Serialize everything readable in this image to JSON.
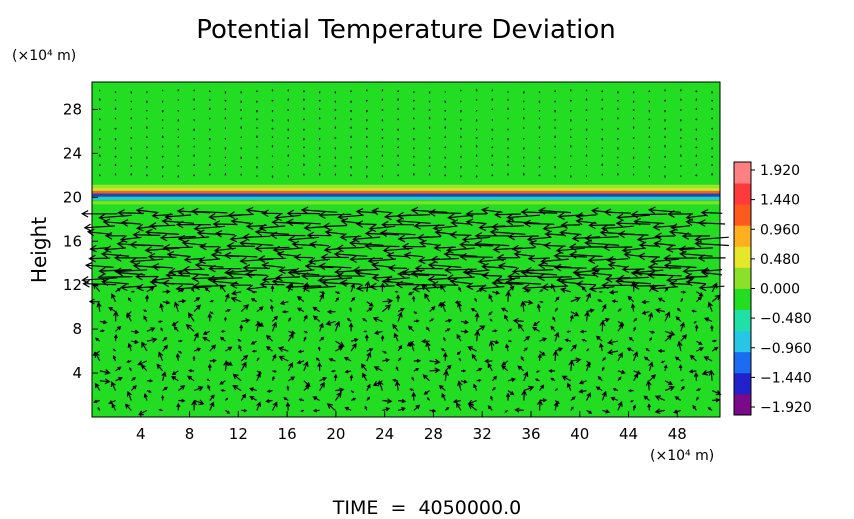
{
  "chart_data": {
    "type": "heatmap",
    "title": "Potential Temperature Deviation",
    "ylabel": "Height",
    "y_unit_label": "(×10⁴ m)",
    "x_unit_label": "(×10⁴ m)",
    "footer": "TIME  =  4050000.0",
    "x_ticks": [
      "4",
      "8",
      "12",
      "16",
      "20",
      "24",
      "28",
      "32",
      "36",
      "40",
      "44",
      "48"
    ],
    "y_ticks": [
      "4",
      "8",
      "12",
      "16",
      "20",
      "24",
      "28"
    ],
    "x_tick_values": [
      4,
      8,
      12,
      16,
      20,
      24,
      28,
      32,
      36,
      40,
      44,
      48
    ],
    "y_tick_values": [
      4,
      8,
      12,
      16,
      20,
      24,
      28
    ],
    "xlim": [
      0,
      51.5
    ],
    "ylim": [
      0,
      30.5
    ],
    "colorbar": {
      "labels": [
        "1.920",
        "1.440",
        "0.960",
        "0.480",
        "0.000",
        "−0.480",
        "−0.960",
        "−1.440",
        "−1.920"
      ],
      "range": [
        -1.92,
        1.92
      ],
      "colors": [
        "#7a0a8a",
        "#2222cc",
        "#1b6cf0",
        "#27c6e6",
        "#20e0a8",
        "#22dd22",
        "#8de02a",
        "#e6e62a",
        "#ffb01e",
        "#ff5a1e",
        "#ff3a3a",
        "#ff8080"
      ]
    },
    "background_color": "#22dd22",
    "bands": [
      {
        "y": 21.0,
        "value": 0.55,
        "color": "#a8e830"
      },
      {
        "y": 20.7,
        "value": 0.9,
        "color": "#e6e62a"
      },
      {
        "y": 20.45,
        "value": 1.8,
        "color": "#ff5a1e"
      },
      {
        "y": 20.2,
        "value": -1.2,
        "color": "#2233cc"
      },
      {
        "y": 19.9,
        "value": -0.6,
        "color": "#27c6e6"
      },
      {
        "y": 19.5,
        "value": 0.3,
        "color": "#8de02a"
      }
    ],
    "vector_rows": [
      {
        "y": 18.5,
        "strength": 0.9,
        "direction": "west"
      },
      {
        "y": 17.5,
        "strength": 0.75,
        "direction": "west"
      },
      {
        "y": 16.5,
        "strength": 0.85,
        "direction": "west"
      },
      {
        "y": 15.5,
        "strength": 0.8,
        "direction": "west"
      },
      {
        "y": 14.5,
        "strength": 0.7,
        "direction": "west"
      },
      {
        "y": 13.5,
        "strength": 0.65,
        "direction": "west"
      },
      {
        "y": 12.8,
        "strength": 0.9,
        "direction": "west"
      },
      {
        "y": 12.0,
        "strength": 0.85,
        "direction": "west"
      }
    ]
  }
}
